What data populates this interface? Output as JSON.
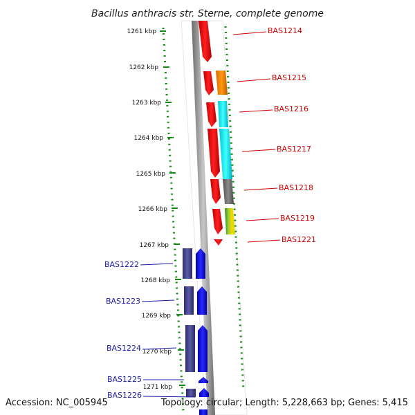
{
  "title": "Bacillus anthracis str. Sterne, complete genome",
  "ticks": [
    "1261 kbp",
    "1262 kbp",
    "1263 kbp",
    "1264 kbp",
    "1265 kbp",
    "1266 kbp",
    "1267 kbp",
    "1268 kbp",
    "1269 kbp",
    "1270 kbp",
    "1271 kbp"
  ],
  "genes_forward": [
    "BAS1214",
    "BAS1215",
    "BAS1216",
    "BAS1217",
    "BAS1218",
    "BAS1219",
    "BAS1221"
  ],
  "genes_reverse": [
    "BAS1222",
    "BAS1223",
    "BAS1224",
    "BAS1225",
    "BAS1226"
  ],
  "footer": {
    "accession": "Accession: NC_005945",
    "summary": "Topology: circular; Length: 5,228,663 bp; Genes: 5,415"
  },
  "colors": {
    "forward_gene": "#ff0000",
    "reverse_gene": "#0000ff",
    "reverse_gene_alt": "#3d3d99",
    "tick_dots": "#138a13",
    "backbone": "#8c8c8c"
  }
}
